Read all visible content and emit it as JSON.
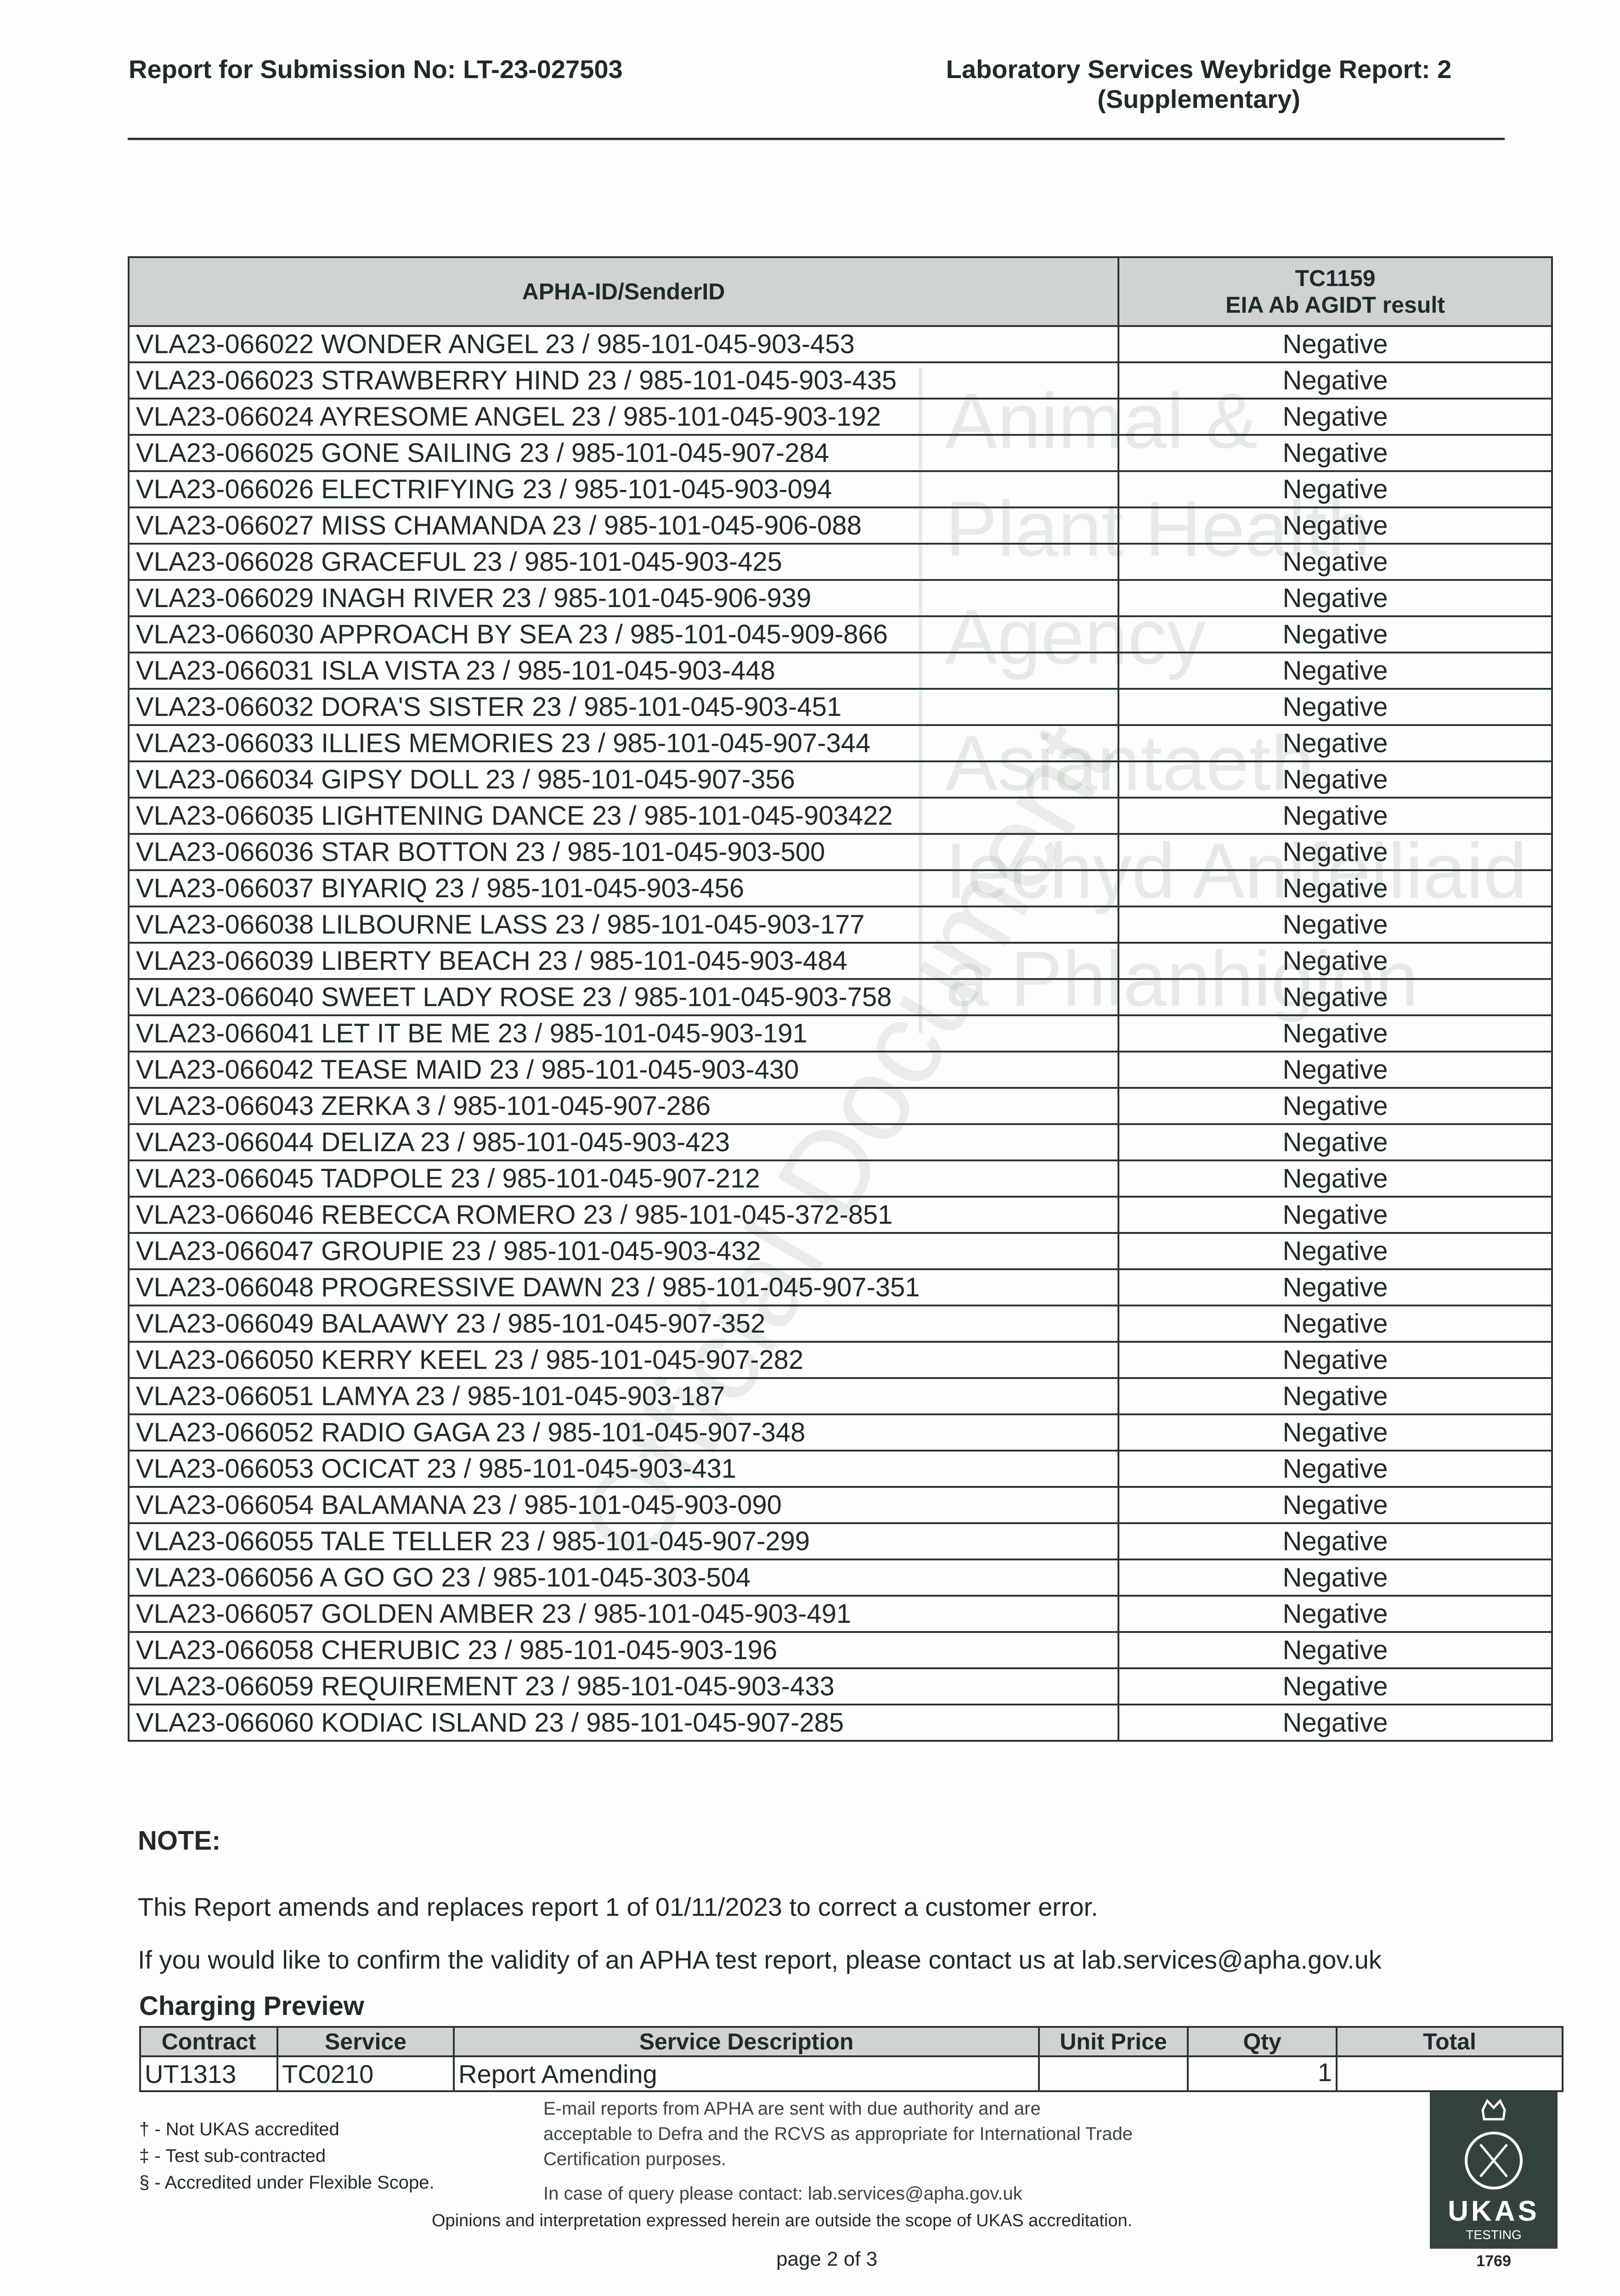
{
  "header": {
    "left": "Report for Submission No: LT-23-027503",
    "right_line1": "Laboratory Services Weybridge Report: 2",
    "right_line2": "(Supplementary)"
  },
  "watermark": {
    "english": [
      "Animal &",
      "Plant Health",
      "Agency"
    ],
    "welsh": [
      "Asiantaeth",
      "Iechyd Anifeiliaid",
      "a Phlanhigion"
    ],
    "diagonal": "Official Document"
  },
  "table": {
    "col1_header": "APHA-ID/SenderID",
    "col2_header_line1": "TC1159",
    "col2_header_line2": "EIA Ab AGIDT result",
    "rows": [
      {
        "id": "VLA23-066022 WONDER ANGEL 23 / 985-101-045-903-453",
        "result": "Negative"
      },
      {
        "id": "VLA23-066023 STRAWBERRY HIND 23 / 985-101-045-903-435",
        "result": "Negative"
      },
      {
        "id": "VLA23-066024 AYRESOME ANGEL 23 / 985-101-045-903-192",
        "result": "Negative"
      },
      {
        "id": "VLA23-066025 GONE SAILING 23 / 985-101-045-907-284",
        "result": "Negative"
      },
      {
        "id": "VLA23-066026 ELECTRIFYING 23 / 985-101-045-903-094",
        "result": "Negative"
      },
      {
        "id": "VLA23-066027 MISS CHAMANDA 23 / 985-101-045-906-088",
        "result": "Negative"
      },
      {
        "id": "VLA23-066028 GRACEFUL 23 / 985-101-045-903-425",
        "result": "Negative"
      },
      {
        "id": "VLA23-066029 INAGH RIVER 23 / 985-101-045-906-939",
        "result": "Negative"
      },
      {
        "id": "VLA23-066030 APPROACH BY SEA 23 / 985-101-045-909-866",
        "result": "Negative"
      },
      {
        "id": "VLA23-066031 ISLA VISTA 23 / 985-101-045-903-448",
        "result": "Negative"
      },
      {
        "id": "VLA23-066032 DORA'S SISTER 23 / 985-101-045-903-451",
        "result": "Negative"
      },
      {
        "id": "VLA23-066033 ILLIES MEMORIES 23 / 985-101-045-907-344",
        "result": "Negative"
      },
      {
        "id": "VLA23-066034 GIPSY DOLL 23 / 985-101-045-907-356",
        "result": "Negative"
      },
      {
        "id": "VLA23-066035 LIGHTENING DANCE 23 / 985-101-045-903422",
        "result": "Negative"
      },
      {
        "id": "VLA23-066036 STAR BOTTON 23 / 985-101-045-903-500",
        "result": "Negative"
      },
      {
        "id": "VLA23-066037 BIYARIQ 23 / 985-101-045-903-456",
        "result": "Negative"
      },
      {
        "id": "VLA23-066038 LILBOURNE LASS 23 / 985-101-045-903-177",
        "result": "Negative"
      },
      {
        "id": "VLA23-066039 LIBERTY BEACH 23 / 985-101-045-903-484",
        "result": "Negative"
      },
      {
        "id": "VLA23-066040 SWEET LADY ROSE 23 / 985-101-045-903-758",
        "result": "Negative"
      },
      {
        "id": "VLA23-066041 LET IT BE ME 23 / 985-101-045-903-191",
        "result": "Negative"
      },
      {
        "id": "VLA23-066042 TEASE MAID 23 / 985-101-045-903-430",
        "result": "Negative"
      },
      {
        "id": "VLA23-066043 ZERKA 3 / 985-101-045-907-286",
        "result": "Negative"
      },
      {
        "id": "VLA23-066044 DELIZA 23 / 985-101-045-903-423",
        "result": "Negative"
      },
      {
        "id": "VLA23-066045 TADPOLE 23 / 985-101-045-907-212",
        "result": "Negative"
      },
      {
        "id": "VLA23-066046 REBECCA ROMERO 23 / 985-101-045-372-851",
        "result": "Negative"
      },
      {
        "id": "VLA23-066047 GROUPIE 23 / 985-101-045-903-432",
        "result": "Negative"
      },
      {
        "id": "VLA23-066048 PROGRESSIVE DAWN 23 / 985-101-045-907-351",
        "result": "Negative"
      },
      {
        "id": "VLA23-066049 BALAAWY 23 / 985-101-045-907-352",
        "result": "Negative"
      },
      {
        "id": "VLA23-066050 KERRY KEEL 23 / 985-101-045-907-282",
        "result": "Negative"
      },
      {
        "id": "VLA23-066051 LAMYA 23 / 985-101-045-903-187",
        "result": "Negative"
      },
      {
        "id": "VLA23-066052 RADIO GAGA 23 / 985-101-045-907-348",
        "result": "Negative"
      },
      {
        "id": "VLA23-066053 OCICAT 23 / 985-101-045-903-431",
        "result": "Negative"
      },
      {
        "id": "VLA23-066054 BALAMANA 23 / 985-101-045-903-090",
        "result": "Negative"
      },
      {
        "id": "VLA23-066055 TALE TELLER 23 / 985-101-045-907-299",
        "result": "Negative"
      },
      {
        "id": "VLA23-066056 A GO GO 23 / 985-101-045-303-504",
        "result": "Negative"
      },
      {
        "id": "VLA23-066057 GOLDEN AMBER 23 / 985-101-045-903-491",
        "result": "Negative"
      },
      {
        "id": "VLA23-066058 CHERUBIC 23 / 985-101-045-903-196",
        "result": "Negative"
      },
      {
        "id": "VLA23-066059 REQUIREMENT 23 / 985-101-045-903-433",
        "result": "Negative"
      },
      {
        "id": "VLA23-066060 KODIAC ISLAND 23 / 985-101-045-907-285",
        "result": "Negative"
      }
    ]
  },
  "note": {
    "heading": "NOTE:",
    "line1": "This Report amends and replaces report 1 of 01/11/2023 to correct a customer error.",
    "line2": "If you would like to confirm the validity of an APHA test report, please contact us at lab.services@apha.gov.uk"
  },
  "charging": {
    "title": "Charging Preview",
    "headers": [
      "Contract",
      "Service",
      "Service Description",
      "Unit Price",
      "Qty",
      "Total"
    ],
    "row": [
      "UT1313",
      "TC0210",
      "Report Amending",
      "",
      "1",
      ""
    ]
  },
  "footer": {
    "keys": [
      "† - Not UKAS accredited",
      "‡ - Test sub-contracted",
      "§ - Accredited under Flexible Scope."
    ],
    "email_lines": [
      "E-mail reports from APHA are sent with due authority and are",
      "acceptable to Defra and the RCVS as appropriate for International Trade",
      "Certification purposes."
    ],
    "contact": "In case of query please contact: lab.services@apha.gov.uk",
    "opinions": "Opinions and interpretation expressed herein are outside the scope of UKAS accreditation.",
    "page": "page 2 of 3",
    "ukas_text": "UKAS",
    "ukas_sub": "TESTING",
    "ukas_number": "1769"
  }
}
